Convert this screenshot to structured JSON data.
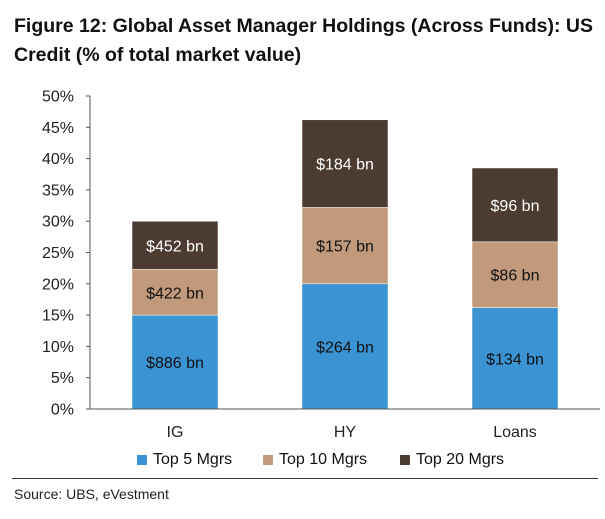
{
  "title": "Figure 12: Global Asset Manager Holdings (Across Funds): US Credit (% of total market value)",
  "source": "Source:  UBS, eVestment",
  "chart_data": {
    "type": "bar",
    "stacked": true,
    "categories": [
      "IG",
      "HY",
      "Loans"
    ],
    "series": [
      {
        "name": "Top 5 Mgrs",
        "color": "#3a93d3",
        "values": [
          15.0,
          20.0,
          16.2
        ],
        "labels": [
          "$886 bn",
          "$264 bn",
          "$134 bn"
        ]
      },
      {
        "name": "Top 10 Mgrs",
        "color": "#c29a7b",
        "values": [
          7.3,
          12.2,
          10.5
        ],
        "labels": [
          "$422 bn",
          "$157 bn",
          "$86 bn"
        ]
      },
      {
        "name": "Top 20 Mgrs",
        "color": "#4b3b31",
        "values": [
          7.7,
          14.0,
          11.8
        ],
        "labels": [
          "$452 bn",
          "$184 bn",
          "$96 bn"
        ]
      }
    ],
    "ylim": [
      0,
      50
    ],
    "yticks": [
      "0%",
      "5%",
      "10%",
      "15%",
      "20%",
      "25%",
      "30%",
      "35%",
      "40%",
      "45%",
      "50%"
    ],
    "grid": false,
    "legend": "bottom"
  }
}
